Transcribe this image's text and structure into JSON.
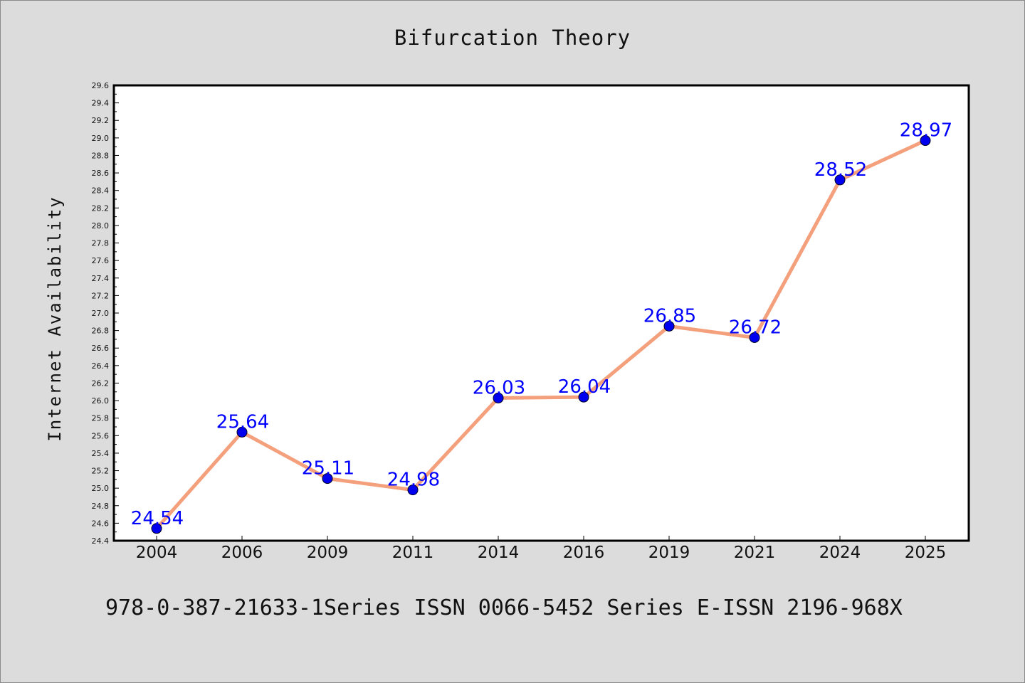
{
  "chart_data": {
    "type": "line",
    "title": "Bifurcation Theory",
    "xlabel": "",
    "ylabel": "Internet Availability",
    "categories": [
      "2004",
      "2006",
      "2009",
      "2011",
      "2014",
      "2016",
      "2019",
      "2021",
      "2024",
      "2025"
    ],
    "series": [
      {
        "values": [
          24.54,
          25.64,
          25.11,
          24.98,
          26.03,
          26.04,
          26.85,
          26.72,
          28.52,
          28.97
        ]
      }
    ],
    "data_labels": [
      "24.54",
      "25.64",
      "25.11",
      "24.98",
      "26.03",
      "26.04",
      "26.85",
      "26.72",
      "28.52",
      "28.97"
    ],
    "ylim": [
      24.4,
      29.6
    ],
    "yticks": [
      "24.4",
      "24.6",
      "24.8",
      "25.0",
      "25.2",
      "25.4",
      "25.6",
      "25.8",
      "26.0",
      "26.2",
      "26.4",
      "26.6",
      "26.8",
      "27.0",
      "27.2",
      "27.4",
      "27.6",
      "27.8",
      "28.0",
      "28.2",
      "28.4",
      "28.6",
      "28.8",
      "29.0",
      "29.2",
      "29.4",
      "29.6"
    ],
    "grid": false,
    "legend": "none",
    "colors": {
      "line": "#f4a07c",
      "marker": "#0000ee",
      "label": "#0000ff",
      "plot_background": "#ffffff",
      "figure_background": "#dcdcdc"
    }
  },
  "footer": "978-0-387-21633-1Series ISSN 0066-5452 Series E-ISSN 2196-968X"
}
